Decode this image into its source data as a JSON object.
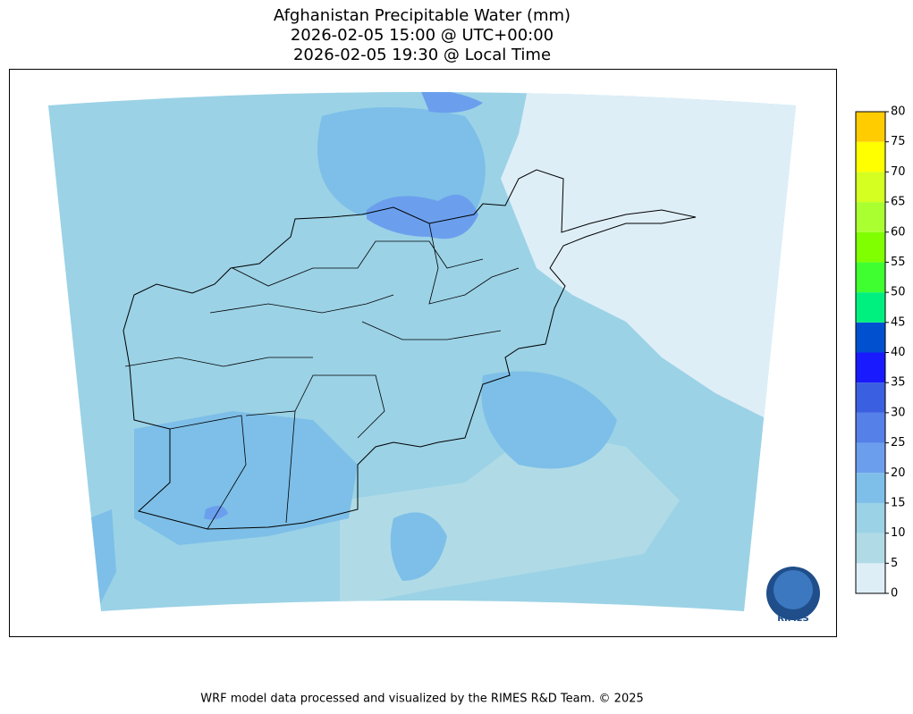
{
  "title_lines": [
    "Afghanistan Precipitable Water (mm)",
    "2026-02-05 15:00 @ UTC+00:00",
    "2026-02-05 19:30 @ Local Time"
  ],
  "colorbar": {
    "levels": [
      0,
      5,
      10,
      15,
      20,
      25,
      30,
      35,
      40,
      45,
      50,
      55,
      60,
      65,
      70,
      75,
      80
    ],
    "colors": [
      "#deeef7",
      "#b0dbe6",
      "#9bd2e6",
      "#7dbfe8",
      "#6b9fee",
      "#5480e8",
      "#3a5fe0",
      "#1a1aff",
      "#0050d0",
      "#00f080",
      "#40ff30",
      "#80ff00",
      "#aaff30",
      "#d4ff20",
      "#ffff00",
      "#ffcc00"
    ]
  },
  "logo": "RIMES",
  "footer": "WRF model data processed and visualized by the RIMES R&D Team. © 2025"
}
